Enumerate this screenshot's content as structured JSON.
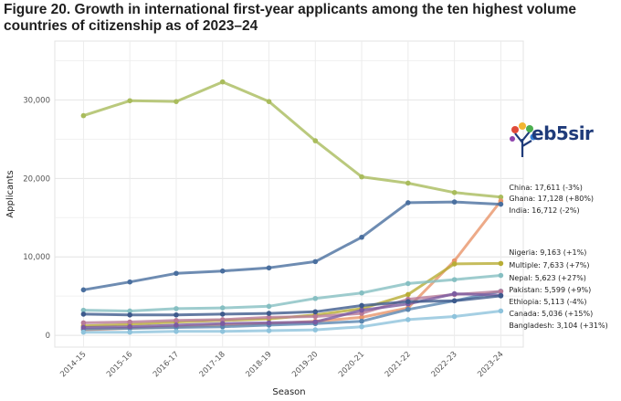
{
  "figure_title": "Figure 20. Growth in international first-year applicants among the ten highest volume countries of citizenship as of 2023–24",
  "logo": {
    "text": "eb5sir"
  },
  "chart_data": {
    "type": "line",
    "xlabel": "Season",
    "ylabel": "Applicants",
    "categories": [
      "2014-15",
      "2015-16",
      "2016-17",
      "2017-18",
      "2018-19",
      "2019-20",
      "2020-21",
      "2021-22",
      "2022-23",
      "2023-24"
    ],
    "ylim": [
      -1500,
      37500
    ],
    "yticks": [
      0,
      10000,
      20000,
      30000
    ],
    "ytick_labels": [
      "0",
      "10,000",
      "20,000",
      "30,000"
    ],
    "grid": true,
    "series": [
      {
        "name": "China: 17,611 (-3%)",
        "color": "#a9bc5c",
        "values": [
          28000,
          29900,
          29800,
          32300,
          29800,
          24800,
          20200,
          19400,
          18200,
          17611
        ]
      },
      {
        "name": "Ghana: 17,128 (+80%)",
        "color": "#e8956a",
        "values": [
          700,
          900,
          1100,
          1300,
          1500,
          1800,
          2300,
          3500,
          9500,
          17128
        ]
      },
      {
        "name": "India: 16,712 (-2%)",
        "color": "#4a6f9f",
        "values": [
          5800,
          6800,
          7900,
          8200,
          8600,
          9400,
          12500,
          16900,
          17000,
          16712
        ]
      },
      {
        "name": "Nigeria: 9,163 (+1%)",
        "color": "#b8ad35",
        "values": [
          1200,
          1400,
          1700,
          1900,
          2100,
          2600,
          3400,
          5200,
          9100,
          9163
        ]
      },
      {
        "name": "Multiple: 7,633 (+7%)",
        "color": "#86bfc2",
        "values": [
          3200,
          3100,
          3400,
          3500,
          3700,
          4700,
          5400,
          6600,
          7100,
          7633
        ]
      },
      {
        "name": "Nepal: 5,623 (+27%)",
        "color": "#5a86b0",
        "values": [
          800,
          900,
          1000,
          1100,
          1300,
          1500,
          1800,
          3300,
          4400,
          5623
        ]
      },
      {
        "name": "Pakistan: 5,599 (+9%)",
        "color": "#b87a98",
        "values": [
          1600,
          1700,
          1900,
          2000,
          2300,
          2400,
          2800,
          4600,
          5200,
          5599
        ]
      },
      {
        "name": "Ethiopia: 5,113 (-4%)",
        "color": "#7b5ba0",
        "values": [
          1000,
          1100,
          1300,
          1500,
          1600,
          1700,
          3200,
          4000,
          5300,
          5113
        ]
      },
      {
        "name": "Canada: 5,036 (+15%)",
        "color": "#3d5a8c",
        "values": [
          2700,
          2600,
          2600,
          2700,
          2800,
          3000,
          3800,
          4300,
          4400,
          5036
        ]
      },
      {
        "name": "Bangladesh: 3,104 (+31%)",
        "color": "#8ec3dc",
        "values": [
          400,
          400,
          500,
          500,
          600,
          700,
          1100,
          2000,
          2400,
          3104
        ]
      }
    ]
  }
}
